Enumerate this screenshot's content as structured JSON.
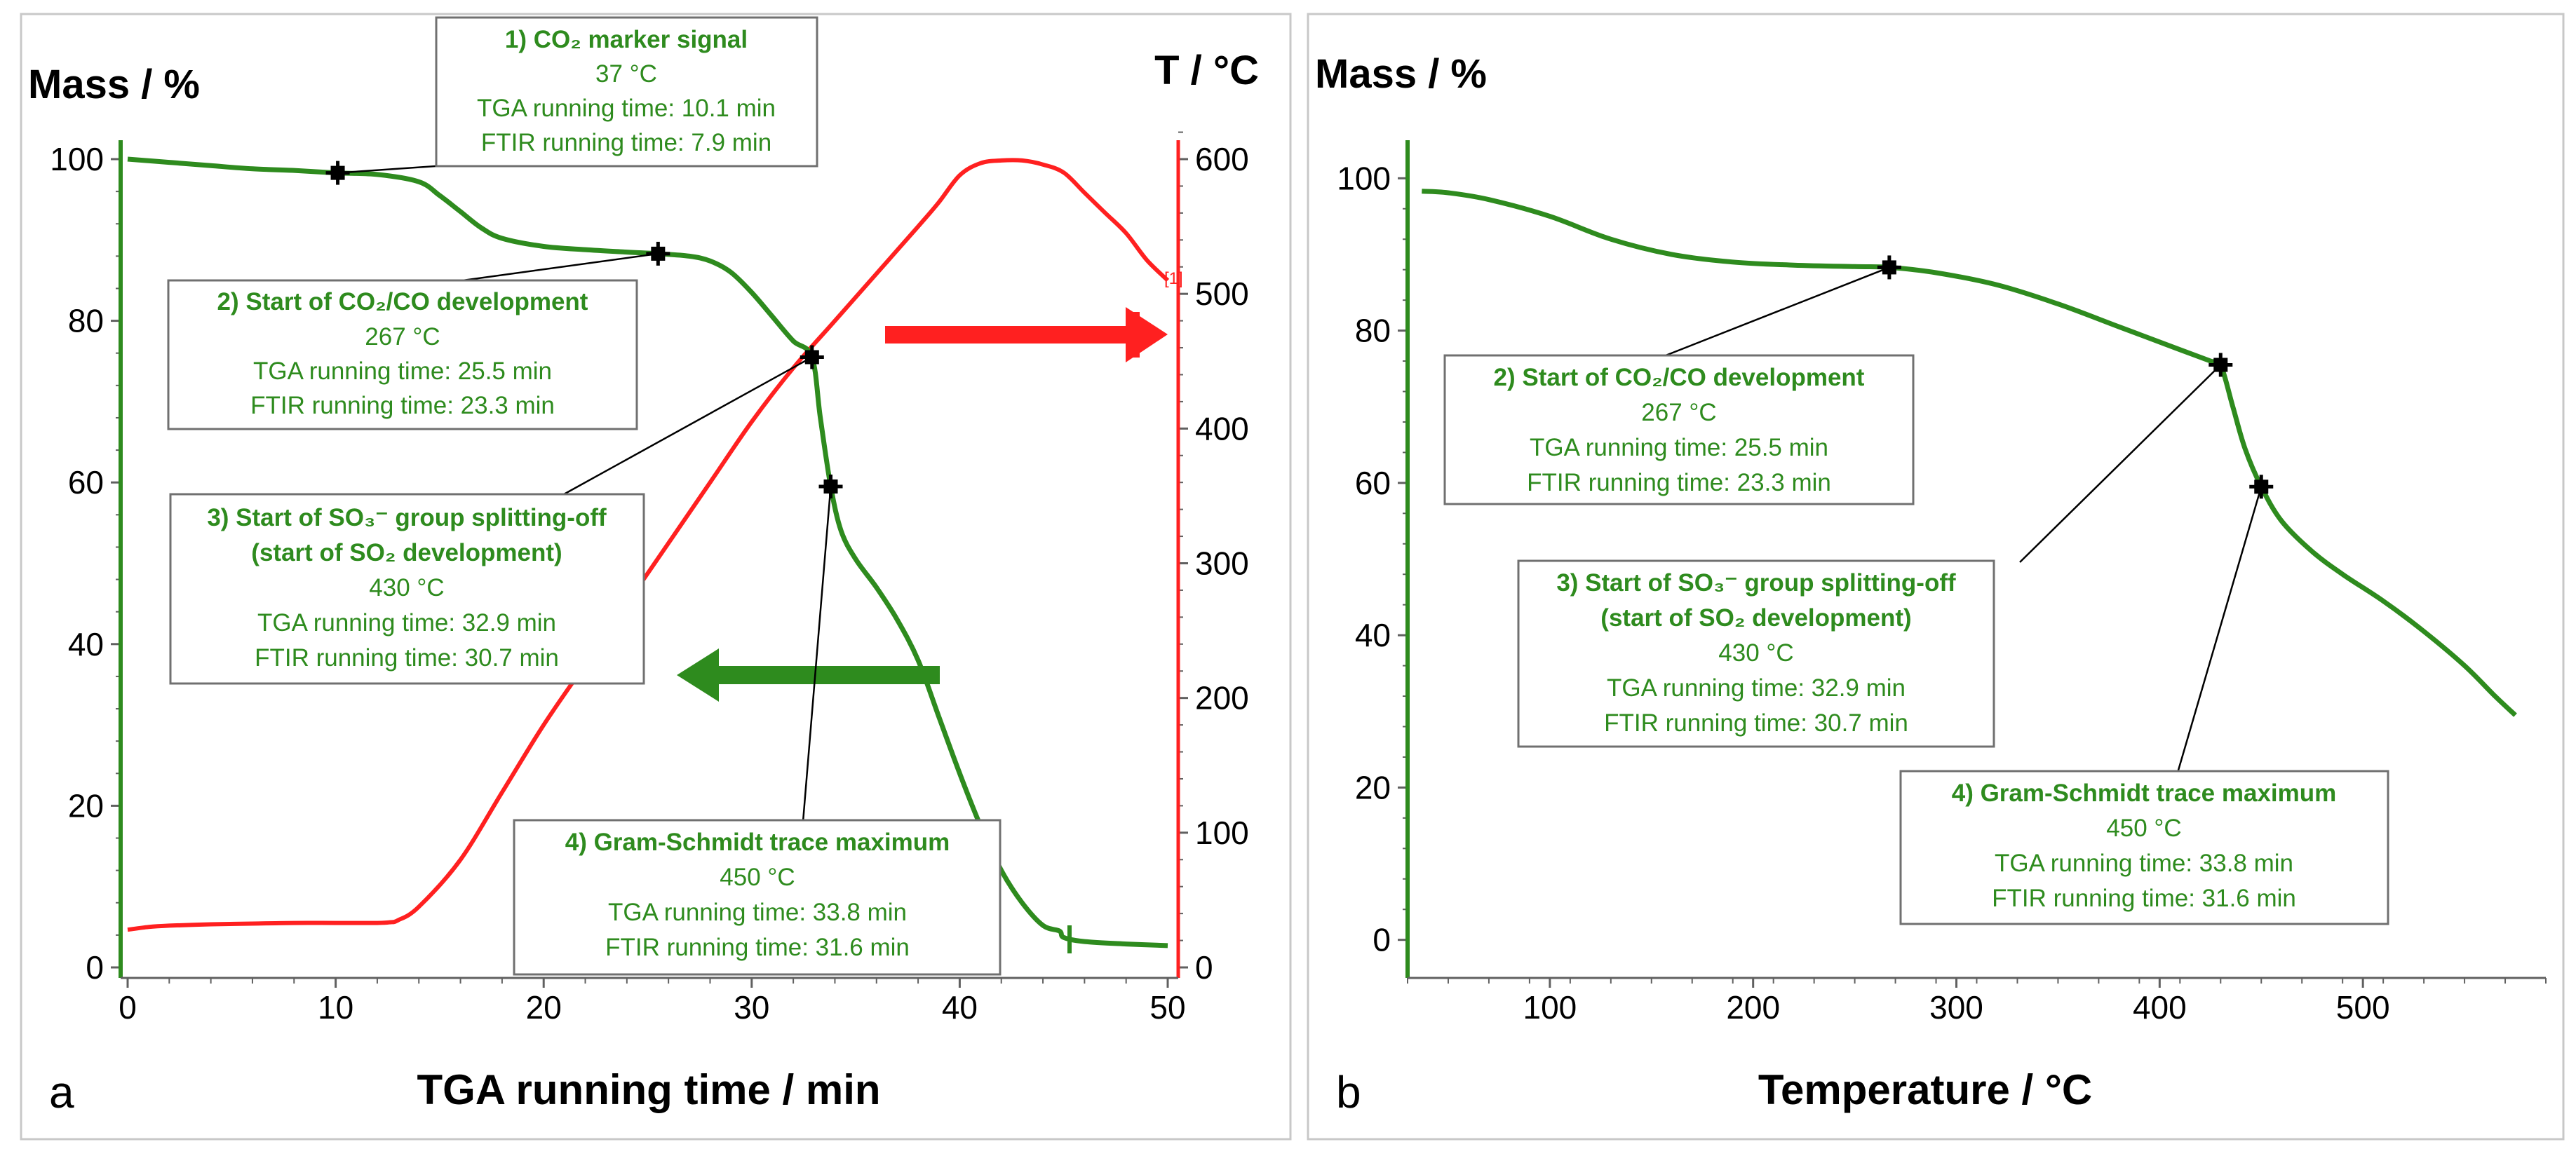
{
  "colors": {
    "mass": "#2e8b1e",
    "temp": "#ff2020",
    "annot_text": "#2e8b1e",
    "axis_text": "#000000"
  },
  "chart_data": [
    {
      "panel_label": "a",
      "type": "line",
      "xlabel": "TGA running time / min",
      "ylabel_left": "Mass / %",
      "ylabel_right": "T / °C",
      "xlim": [
        0,
        50
      ],
      "ylim_left": [
        0,
        100
      ],
      "ylim_right": [
        0,
        600
      ],
      "xticks": [
        0,
        10,
        20,
        30,
        40,
        50
      ],
      "yticks_left": [
        0,
        20,
        40,
        60,
        80,
        100
      ],
      "yticks_right": [
        0,
        100,
        200,
        300,
        400,
        500,
        600
      ],
      "series": [
        {
          "name": "Mass",
          "axis": "left",
          "color": "#2e8b1e",
          "x": [
            0,
            2,
            4,
            6,
            8,
            10,
            12,
            14,
            15,
            16,
            17,
            18,
            20,
            22,
            24,
            25.5,
            27,
            28,
            29,
            30,
            31,
            32,
            32.9,
            33.3,
            33.8,
            34.3,
            35,
            36,
            37,
            38,
            39,
            40,
            41,
            42,
            43,
            44,
            44.8,
            45,
            46,
            48,
            50
          ],
          "y": [
            100,
            99.6,
            99.2,
            98.8,
            98.6,
            98.3,
            98.1,
            97.2,
            95.5,
            93.5,
            91.5,
            90.2,
            89.2,
            88.8,
            88.5,
            88.3,
            88,
            87.4,
            86,
            83.5,
            80.5,
            77.5,
            75.5,
            68,
            59.5,
            54,
            50.5,
            47,
            43,
            38,
            31,
            24,
            17.5,
            12,
            8,
            5.2,
            4.5,
            3.7,
            3.2,
            2.9,
            2.7
          ]
        },
        {
          "name": "Temperature",
          "axis": "right",
          "color": "#ff2020",
          "x": [
            0,
            1,
            2,
            4,
            6,
            8,
            10,
            12,
            12.6,
            13,
            14,
            16,
            18,
            20,
            22,
            24,
            26,
            28,
            30,
            32,
            34,
            36,
            38,
            39,
            40,
            41,
            42,
            43,
            44,
            45,
            46,
            47,
            48,
            49,
            50
          ],
          "y": [
            28,
            30,
            31,
            32,
            32.5,
            33,
            33,
            33,
            33.5,
            35,
            45,
            80,
            130,
            180,
            225,
            270,
            315,
            360,
            405,
            445,
            480,
            515,
            550,
            568,
            588,
            597,
            599,
            599,
            596,
            590,
            575,
            560,
            545,
            525,
            510
          ]
        }
      ],
      "markers": [
        {
          "series": "Mass",
          "x": 10.1,
          "y": 98.3
        },
        {
          "series": "Mass",
          "x": 25.5,
          "y": 88.3
        },
        {
          "series": "Mass",
          "x": 32.9,
          "y": 75.5
        },
        {
          "series": "Mass",
          "x": 33.8,
          "y": 59.5
        }
      ],
      "annotations": [
        {
          "title": "1) CO₂ marker signal",
          "temp": "37 °C",
          "tga": "TGA running time: 10.1 min",
          "ftir": "FTIR running time: 7.9 min"
        },
        {
          "title": "2) Start of CO₂/CO development",
          "temp": "267 °C",
          "tga": "TGA running time: 25.5 min",
          "ftir": "FTIR running time: 23.3 min"
        },
        {
          "title": "3) Start of SO₃⁻ group splitting-off",
          "title2": "(start of SO₂ development)",
          "temp": "430 °C",
          "tga": "TGA running time: 32.9 min",
          "ftir": "FTIR running time: 30.7 min"
        },
        {
          "title": "4) Gram-Schmidt trace maximum",
          "temp": "450 °C",
          "tga": "TGA running time: 33.8 min",
          "ftir": "FTIR running time: 31.6 min"
        }
      ],
      "reference_mark": "[1]"
    },
    {
      "panel_label": "b",
      "type": "line",
      "xlabel": "Temperature / °C",
      "ylabel_left": "Mass / %",
      "xlim": [
        30,
        590
      ],
      "ylim_left": [
        -5,
        105
      ],
      "xticks": [
        100,
        200,
        300,
        400,
        500
      ],
      "yticks_left": [
        0,
        20,
        40,
        60,
        80,
        100
      ],
      "series": [
        {
          "name": "Mass",
          "axis": "left",
          "color": "#2e8b1e",
          "x": [
            37,
            50,
            70,
            100,
            130,
            160,
            190,
            220,
            250,
            267,
            290,
            320,
            350,
            380,
            410,
            425,
            430,
            436,
            442,
            450,
            460,
            475,
            490,
            510,
            530,
            550,
            565,
            575
          ],
          "y": [
            98.3,
            98.1,
            97.2,
            95,
            92,
            90,
            89,
            88.6,
            88.4,
            88.3,
            87.6,
            86,
            83.5,
            80.5,
            77.5,
            76,
            75.5,
            70,
            64.5,
            59.5,
            55,
            51,
            48,
            44.5,
            40.5,
            36,
            32,
            29.5
          ]
        }
      ],
      "markers": [
        {
          "series": "Mass",
          "x": 267,
          "y": 88.3
        },
        {
          "series": "Mass",
          "x": 430,
          "y": 75.5
        },
        {
          "series": "Mass",
          "x": 450,
          "y": 59.5
        }
      ],
      "annotations": [
        {
          "title": "2) Start of CO₂/CO development",
          "temp": "267 °C",
          "tga": "TGA running time: 25.5 min",
          "ftir": "FTIR running time: 23.3 min"
        },
        {
          "title": "3) Start of SO₃⁻ group splitting-off",
          "title2": "(start of SO₂ development)",
          "temp": "430 °C",
          "tga": "TGA running time: 32.9 min",
          "ftir": "FTIR running time: 30.7 min"
        },
        {
          "title": "4) Gram-Schmidt trace maximum",
          "temp": "450 °C",
          "tga": "TGA running time: 33.8 min",
          "ftir": "FTIR running time: 31.6 min"
        }
      ]
    }
  ]
}
